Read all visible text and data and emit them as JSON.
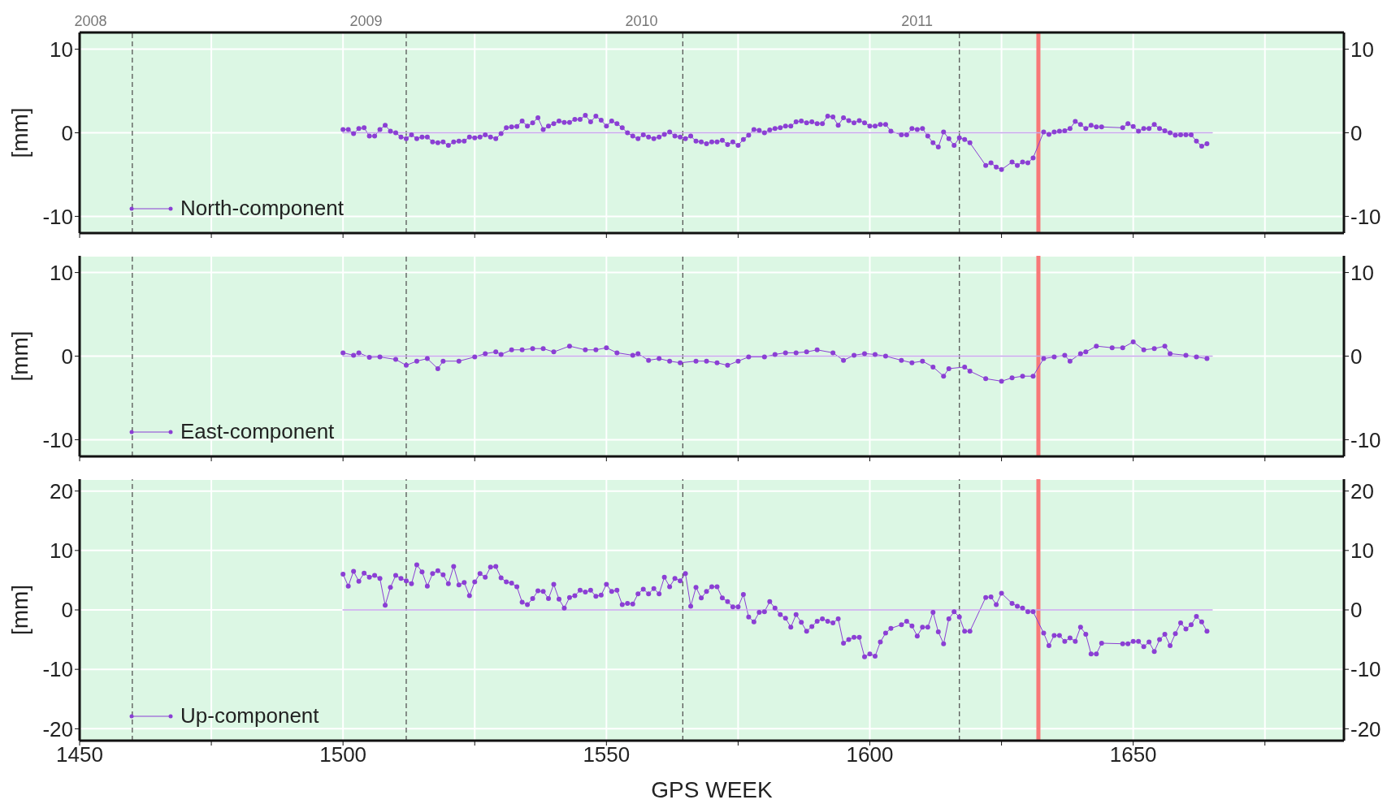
{
  "chart_data": [
    {
      "type": "line",
      "ylabel": "[mm]",
      "xlim": [
        1450,
        1690
      ],
      "xticks": [
        1450,
        {
          "value": 1475,
          "label": null
        },
        1500,
        {
          "value": 1525,
          "label": null
        },
        1550,
        {
          "value": 1575,
          "label": null
        },
        1600,
        {
          "value": 1625,
          "label": null
        },
        1650,
        {
          "value": 1675,
          "label": null
        }
      ],
      "x2lim": [
        2007.96,
        2012.55
      ],
      "x2ticks": [
        2008,
        2009,
        2010,
        2011
      ],
      "ylim": [
        -12,
        12
      ],
      "yticks": [
        -10,
        0,
        10
      ],
      "y2lim": [
        -12,
        12
      ],
      "y2ticks": [
        -10,
        0,
        10
      ],
      "tick_labels": "y",
      "grid": true,
      "legend": "bottom left",
      "marker": "circle",
      "line_style": "solid",
      "ref_lines": [
        {
          "axis": "x",
          "value": 1460,
          "color": "#555555",
          "line_style": "dashed"
        },
        {
          "axis": "x",
          "value": 1512,
          "color": "#555555",
          "line_style": "dashed"
        },
        {
          "axis": "x",
          "value": 1564.5,
          "color": "#555555",
          "line_style": "dashed"
        },
        {
          "axis": "x",
          "value": 1617,
          "color": "#555555",
          "line_style": "dashed"
        },
        {
          "axis": "x",
          "value": 1632,
          "color": "#f87878",
          "line_style": "solid"
        }
      ],
      "series": [
        {
          "name": "North-component",
          "color": "#8b3fd4",
          "x": [
            1500,
            1501,
            1502,
            1503,
            1504,
            1505,
            1506,
            1507,
            1508,
            1509,
            1510,
            1511,
            1512,
            1513,
            1514,
            1515,
            1516,
            1517,
            1518,
            1519,
            1520,
            1521,
            1522,
            1523,
            1524,
            1525,
            1526,
            1527,
            1528,
            1529,
            1530,
            1531,
            1532,
            1533,
            1534,
            1535,
            1536,
            1537,
            1538,
            1539,
            1540,
            1541,
            1542,
            1543,
            1544,
            1545,
            1546,
            1547,
            1548,
            1549,
            1550,
            1551,
            1552,
            1553,
            1554,
            1555,
            1556,
            1557,
            1558,
            1559,
            1560,
            1561,
            1562,
            1563,
            1564,
            1565,
            1566,
            1567,
            1568,
            1569,
            1570,
            1571,
            1572,
            1573,
            1574,
            1575,
            1576,
            1577,
            1578,
            1579,
            1580,
            1581,
            1582,
            1583,
            1584,
            1585,
            1586,
            1587,
            1588,
            1589,
            1590,
            1591,
            1592,
            1593,
            1594,
            1595,
            1596,
            1597,
            1598,
            1599,
            1600,
            1601,
            1602,
            1603,
            1604,
            1606,
            1607,
            1608,
            1609,
            1610,
            1611,
            1612,
            1613,
            1614,
            1615,
            1616,
            1617,
            1618,
            1619,
            1622,
            1623,
            1624,
            1625,
            1627,
            1628,
            1629,
            1630,
            1631,
            1633,
            1634,
            1635,
            1636,
            1637,
            1638,
            1639,
            1640,
            1641,
            1642,
            1643,
            1644,
            1648,
            1649,
            1650,
            1651,
            1652,
            1653,
            1654,
            1655,
            1656,
            1657,
            1658,
            1659,
            1660,
            1661,
            1662,
            1663,
            1664
          ],
          "values": [
            0.4,
            0.4,
            -0.1,
            0.5,
            0.6,
            -0.4,
            -0.4,
            0.4,
            0.9,
            0.2,
            0,
            -0.5,
            -0.7,
            -0.25,
            -0.7,
            -0.5,
            -0.5,
            -1.1,
            -1.2,
            -1.1,
            -1.5,
            -1.1,
            -1.0,
            -1.0,
            -0.5,
            -0.6,
            -0.5,
            -0.25,
            -0.5,
            -0.7,
            -0.1,
            0.6,
            0.7,
            0.75,
            1.4,
            0.8,
            1.2,
            1.8,
            0.4,
            0.8,
            1.1,
            1.4,
            1.25,
            1.25,
            1.6,
            1.6,
            2.1,
            1.3,
            2.0,
            1.5,
            0.8,
            1.4,
            1.1,
            0.6,
            0,
            -0.4,
            -0.7,
            -0.25,
            -0.5,
            -0.7,
            -0.5,
            -0.2,
            0.1,
            -0.4,
            -0.5,
            -0.7,
            -0.4,
            -1.0,
            -1.1,
            -1.3,
            -1.1,
            -1.1,
            -0.9,
            -1.4,
            -1.1,
            -1.5,
            -0.8,
            -0.3,
            0.4,
            0.3,
            0,
            0.35,
            0.5,
            0.6,
            0.8,
            0.8,
            1.3,
            1.4,
            1.2,
            1.3,
            1.1,
            1.1,
            2.0,
            1.9,
            0.9,
            1.8,
            1.45,
            1.2,
            1.45,
            1.2,
            0.8,
            0.8,
            1.0,
            1.0,
            0.2,
            -0.25,
            -0.25,
            0.5,
            0.4,
            0.5,
            -0.4,
            -1.2,
            -1.7,
            0.1,
            -0.7,
            -1.5,
            -0.6,
            -0.8,
            -1.2,
            -3.9,
            -3.6,
            -4.1,
            -4.4,
            -3.5,
            -3.9,
            -3.5,
            -3.6,
            -3.0,
            0.1,
            -0.2,
            0.1,
            0.2,
            0.25,
            0.5,
            1.35,
            1.0,
            0.5,
            0.9,
            0.7,
            0.7,
            0.6,
            1.1,
            0.75,
            0.2,
            0.5,
            0.5,
            1.0,
            0.5,
            0.25,
            0,
            -0.3,
            -0.25,
            -0.25,
            -0.25,
            -1.0,
            -1.6,
            -1.3
          ]
        },
        {
          "type": "line",
          "color": "#c6a6ea",
          "marker": "none",
          "x": [
            1500,
            1665
          ],
          "values": [
            0,
            0
          ]
        }
      ]
    },
    {
      "type": "line",
      "ylabel": "[mm]",
      "xlim": [
        1450,
        1690
      ],
      "xticks": [
        1450,
        {
          "value": 1475,
          "label": null
        },
        1500,
        {
          "value": 1525,
          "label": null
        },
        1550,
        {
          "value": 1575,
          "label": null
        },
        1600,
        {
          "value": 1625,
          "label": null
        },
        1650,
        {
          "value": 1675,
          "label": null
        }
      ],
      "ylim": [
        -12,
        12
      ],
      "yticks": [
        -10,
        0,
        10
      ],
      "y2lim": [
        -12,
        12
      ],
      "y2ticks": [
        -10,
        0,
        10
      ],
      "tick_labels": "y",
      "grid": true,
      "legend": "bottom left",
      "marker": "circle",
      "line_style": "solid",
      "ref_lines": [
        {
          "axis": "x",
          "value": 1460,
          "color": "#555555",
          "line_style": "dashed"
        },
        {
          "axis": "x",
          "value": 1512,
          "color": "#555555",
          "line_style": "dashed"
        },
        {
          "axis": "x",
          "value": 1564.5,
          "color": "#555555",
          "line_style": "dashed"
        },
        {
          "axis": "x",
          "value": 1617,
          "color": "#555555",
          "line_style": "dashed"
        },
        {
          "axis": "x",
          "value": 1632,
          "color": "#f87878",
          "line_style": "solid"
        }
      ],
      "series": [
        {
          "name": "East-component",
          "color": "#8b3fd4",
          "x": [
            1500,
            1502,
            1503,
            1505,
            1507,
            1510,
            1512,
            1514,
            1516,
            1518,
            1519,
            1522,
            1525,
            1527,
            1529,
            1530,
            1532,
            1534,
            1536,
            1538,
            1540,
            1543,
            1546,
            1548,
            1550,
            1552,
            1555,
            1556,
            1558,
            1560,
            1562,
            1564,
            1567,
            1569,
            1571,
            1573,
            1575,
            1577,
            1580,
            1582,
            1584,
            1586,
            1588,
            1590,
            1593,
            1595,
            1597,
            1599,
            1601,
            1603,
            1606,
            1608,
            1610,
            1612,
            1614,
            1615,
            1618,
            1619,
            1622,
            1625,
            1627,
            1629,
            1631,
            1633,
            1635,
            1637,
            1638,
            1640,
            1641,
            1643,
            1646,
            1648,
            1650,
            1652,
            1654,
            1656,
            1657,
            1660,
            1662,
            1664
          ],
          "values": [
            0.4,
            0.1,
            0.4,
            -0.15,
            -0.1,
            -0.4,
            -1.1,
            -0.6,
            -0.3,
            -1.5,
            -0.6,
            -0.6,
            -0.1,
            0.3,
            0.5,
            0.2,
            0.75,
            0.75,
            0.9,
            0.9,
            0.5,
            1.2,
            0.75,
            0.75,
            1.0,
            0.4,
            0.1,
            0.3,
            -0.5,
            -0.3,
            -0.6,
            -0.8,
            -0.6,
            -0.6,
            -0.8,
            -1.1,
            -0.6,
            -0.1,
            -0.1,
            0.2,
            0.4,
            0.4,
            0.5,
            0.75,
            0.4,
            -0.5,
            0.1,
            0.3,
            0.2,
            0,
            -0.5,
            -0.8,
            -0.6,
            -1.3,
            -2.4,
            -1.5,
            -1.3,
            -1.8,
            -2.7,
            -3.0,
            -2.6,
            -2.4,
            -2.4,
            -0.3,
            -0.1,
            0.1,
            -0.6,
            0.3,
            0.5,
            1.2,
            1.0,
            1.0,
            1.7,
            0.75,
            0.9,
            1.2,
            0.3,
            0.1,
            -0.1,
            -0.3
          ]
        },
        {
          "type": "line",
          "color": "#c6a6ea",
          "marker": "none",
          "x": [
            1500,
            1665
          ],
          "values": [
            0,
            0
          ]
        }
      ]
    },
    {
      "type": "line",
      "ylabel": "[mm]",
      "xlabel": "GPS WEEK",
      "xlim": [
        1450,
        1690
      ],
      "xticks": [
        1450,
        {
          "value": 1475,
          "label": null
        },
        1500,
        {
          "value": 1525,
          "label": null
        },
        1550,
        {
          "value": 1575,
          "label": null
        },
        1600,
        {
          "value": 1625,
          "label": null
        },
        1650,
        {
          "value": 1675,
          "label": null
        }
      ],
      "ylim": [
        -22,
        22
      ],
      "yticks": [
        -20,
        -10,
        0,
        10,
        20
      ],
      "y2lim": [
        -22,
        22
      ],
      "y2ticks": [
        -20,
        -10,
        0,
        10,
        20
      ],
      "grid": true,
      "legend": "bottom left",
      "marker": "circle",
      "line_style": "solid",
      "ref_lines": [
        {
          "axis": "x",
          "value": 1460,
          "color": "#555555",
          "line_style": "dashed"
        },
        {
          "axis": "x",
          "value": 1512,
          "color": "#555555",
          "line_style": "dashed"
        },
        {
          "axis": "x",
          "value": 1564.5,
          "color": "#555555",
          "line_style": "dashed"
        },
        {
          "axis": "x",
          "value": 1617,
          "color": "#555555",
          "line_style": "dashed"
        },
        {
          "axis": "x",
          "value": 1632,
          "color": "#f87878",
          "line_style": "solid"
        }
      ],
      "series": [
        {
          "name": "Up-component",
          "color": "#8b3fd4",
          "x": [
            1500,
            1501,
            1502,
            1503,
            1504,
            1505,
            1506,
            1507,
            1508,
            1509,
            1510,
            1511,
            1512,
            1513,
            1514,
            1515,
            1516,
            1517,
            1518,
            1519,
            1520,
            1521,
            1522,
            1523,
            1524,
            1525,
            1526,
            1527,
            1528,
            1529,
            1530,
            1531,
            1532,
            1533,
            1534,
            1535,
            1536,
            1537,
            1538,
            1539,
            1540,
            1541,
            1542,
            1543,
            1544,
            1545,
            1546,
            1547,
            1548,
            1549,
            1550,
            1551,
            1552,
            1553,
            1554,
            1555,
            1556,
            1557,
            1558,
            1559,
            1560,
            1561,
            1562,
            1563,
            1564,
            1565,
            1566,
            1567,
            1568,
            1569,
            1570,
            1571,
            1572,
            1573,
            1574,
            1575,
            1576,
            1577,
            1578,
            1579,
            1580,
            1581,
            1582,
            1583,
            1584,
            1585,
            1586,
            1587,
            1588,
            1589,
            1590,
            1591,
            1592,
            1593,
            1594,
            1595,
            1596,
            1597,
            1598,
            1599,
            1600,
            1601,
            1602,
            1603,
            1604,
            1606,
            1607,
            1608,
            1609,
            1610,
            1611,
            1612,
            1613,
            1614,
            1615,
            1616,
            1617,
            1618,
            1619,
            1622,
            1623,
            1624,
            1625,
            1627,
            1628,
            1629,
            1630,
            1631,
            1633,
            1634,
            1635,
            1636,
            1637,
            1638,
            1639,
            1640,
            1641,
            1642,
            1643,
            1644,
            1648,
            1649,
            1650,
            1651,
            1652,
            1653,
            1654,
            1655,
            1656,
            1657,
            1658,
            1659,
            1660,
            1661,
            1662,
            1663,
            1664
          ],
          "values": [
            6.0,
            4.0,
            6.5,
            4.8,
            6.2,
            5.5,
            5.8,
            5.3,
            0.8,
            3.8,
            5.8,
            5.3,
            4.9,
            4.4,
            7.6,
            6.4,
            4.0,
            6.1,
            6.6,
            5.9,
            4.4,
            7.3,
            4.2,
            4.6,
            2.4,
            4.7,
            6.1,
            5.5,
            7.2,
            7.3,
            5.4,
            4.7,
            4.5,
            3.9,
            1.3,
            0.9,
            1.9,
            3.2,
            3.1,
            1.9,
            4.3,
            1.8,
            0.3,
            2.1,
            2.4,
            3.3,
            3.0,
            3.3,
            2.3,
            2.5,
            4.3,
            3.1,
            3.3,
            0.9,
            1.1,
            1.0,
            2.7,
            3.5,
            2.7,
            3.6,
            2.7,
            5.5,
            3.9,
            5.3,
            4.9,
            6.1,
            0.6,
            3.8,
            2.0,
            3.1,
            3.9,
            3.9,
            2.0,
            1.4,
            0.5,
            0.5,
            2.6,
            -1.2,
            -2.0,
            -0.4,
            -0.3,
            1.4,
            0.3,
            -0.8,
            -1.4,
            -2.9,
            -0.8,
            -2.1,
            -3.6,
            -2.8,
            -1.9,
            -1.5,
            -1.9,
            -2.2,
            -1.5,
            -5.6,
            -5.0,
            -4.6,
            -4.6,
            -7.9,
            -7.4,
            -7.8,
            -5.4,
            -3.9,
            -3.1,
            -2.5,
            -1.9,
            -2.7,
            -4.4,
            -2.9,
            -2.9,
            -0.4,
            -3.7,
            -5.7,
            -1.5,
            -0.3,
            -1.2,
            -3.6,
            -3.6,
            2.1,
            2.2,
            0.9,
            2.8,
            1.1,
            0.6,
            0.3,
            -0.3,
            -0.3,
            -3.9,
            -6.0,
            -4.3,
            -4.3,
            -5.3,
            -4.7,
            -5.3,
            -2.9,
            -4.1,
            -7.4,
            -7.4,
            -5.6,
            -5.7,
            -5.7,
            -5.3,
            -5.3,
            -6.2,
            -5.4,
            -7.0,
            -5.0,
            -4.1,
            -6.0,
            -4.0,
            -2.2,
            -3.2,
            -2.5,
            -1.1,
            -2.0,
            -3.6
          ]
        },
        {
          "type": "line",
          "color": "#c6a6ea",
          "marker": "none",
          "x": [
            1500,
            1665
          ],
          "values": [
            0,
            0
          ]
        }
      ]
    }
  ]
}
